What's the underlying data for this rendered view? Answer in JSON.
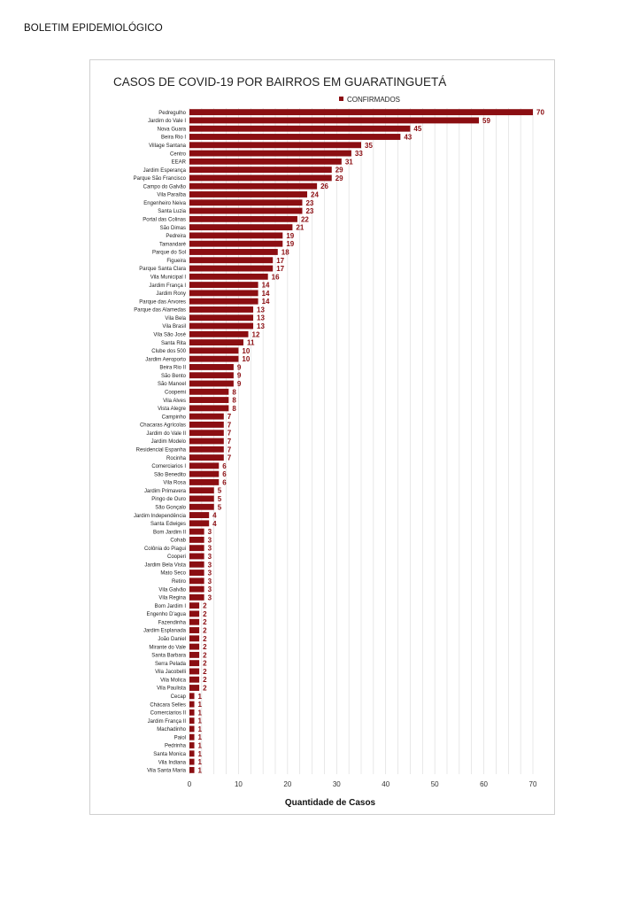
{
  "document": {
    "header": "BOLETIM EPIDEMIOLÓGICO"
  },
  "colors": {
    "bar": "#8b0e12",
    "grid": "#d9d9d9"
  },
  "chart_data": {
    "type": "bar",
    "orientation": "horizontal",
    "title": "CASOS DE COVID-19 POR BAIRROS EM GUARATINGUETÁ",
    "xlabel": "Quantidade de Casos",
    "ylabel": "",
    "xlim": [
      0,
      70
    ],
    "xticks": [
      0,
      10,
      20,
      30,
      40,
      50,
      60,
      70
    ],
    "grid": true,
    "legend": {
      "position": "top-right",
      "entries": [
        "CONFIRMADOS"
      ]
    },
    "series": [
      {
        "name": "CONFIRMADOS"
      }
    ],
    "categories": [
      "Pedregulho",
      "Jardim do Vale I",
      "Nova Guara",
      "Beira Rio I",
      "Village Santana",
      "Centro",
      "EEAR",
      "Jardim Esperança",
      "Parque São Francisco",
      "Campo do Galvão",
      "Vila Paraíba",
      "Engenheiro Neiva",
      "Santa Luzia",
      "Portal das Colinas",
      "São Dimas",
      "Pedreira",
      "Tamandaré",
      "Parque do Sol",
      "Figueira",
      "Parque Santa Clara",
      "Vila Municipal I",
      "Jardim França I",
      "Jardim Rony",
      "Parque das Arvores",
      "Parque das Alamedas",
      "Vila Bela",
      "Vila Brasil",
      "Vila São José",
      "Santa Rita",
      "Clube dos 500",
      "Jardim Aeroporto",
      "Beira Rio II",
      "São Bento",
      "São Manoel",
      "Coopemi",
      "Vila Alves",
      "Vista Alegre",
      "Campinho",
      "Chacaras Agrícolas",
      "Jardim do Vale II",
      "Jardim Modelo",
      "Residencial Espanha",
      "Rocinha",
      "Comerciarios I",
      "São Benedito",
      "Vila Rosa",
      "Jardim Primavera",
      "Pingo de Ouro",
      "São Gonçalo",
      "Jardim Independência",
      "Santa Edwiges",
      "Bom Jardim II",
      "Cohab",
      "Colônia do Piagui",
      "Cooperi",
      "Jardim Bela Vista",
      "Mato Seco",
      "Retiro",
      "Vila Galvão",
      "Vila Regina",
      "Bom Jardim I",
      "Engenho D'agua",
      "Fazendinha",
      "Jardim Esplanada",
      "João Daniel",
      "Mirante do Vale",
      "Santa Barbara",
      "Serra Pelada",
      "Vila Jacobelli",
      "Vila Molica",
      "Vila Paulista",
      "Cecap",
      "Chácara Selles",
      "Comerciarios II",
      "Jardim França II",
      "Machadinho",
      "Paiol",
      "Pedrinha",
      "Santa Monica",
      "Vila Indiana",
      "Vila Santa Maria"
    ],
    "values": [
      70,
      59,
      45,
      43,
      35,
      33,
      31,
      29,
      29,
      26,
      24,
      23,
      23,
      22,
      21,
      19,
      19,
      18,
      17,
      17,
      16,
      14,
      14,
      14,
      13,
      13,
      13,
      12,
      11,
      10,
      10,
      9,
      9,
      9,
      8,
      8,
      8,
      7,
      7,
      7,
      7,
      7,
      7,
      6,
      6,
      6,
      5,
      5,
      5,
      4,
      4,
      3,
      3,
      3,
      3,
      3,
      3,
      3,
      3,
      3,
      2,
      2,
      2,
      2,
      2,
      2,
      2,
      2,
      2,
      2,
      2,
      1,
      1,
      1,
      1,
      1,
      1,
      1,
      1,
      1,
      1
    ]
  }
}
